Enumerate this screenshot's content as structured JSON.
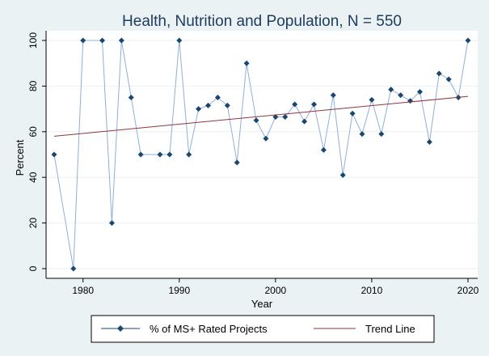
{
  "chart_data": {
    "type": "line",
    "title": "Health, Nutrition and Population, N = 550",
    "xlabel": "Year",
    "ylabel": "Percent",
    "xlim": [
      1977,
      2020
    ],
    "ylim": [
      0,
      100
    ],
    "xticks": [
      1980,
      1990,
      2000,
      2010,
      2020
    ],
    "yticks": [
      0,
      20,
      40,
      60,
      80,
      100
    ],
    "grid": "horizontal",
    "legend_position": "bottom",
    "series": [
      {
        "name": "% of MS+ Rated Projects",
        "color": "#1a476f",
        "marker": "diamond",
        "x": [
          1977,
          1979,
          1980,
          1982,
          1983,
          1984,
          1985,
          1986,
          1988,
          1989,
          1990,
          1991,
          1992,
          1993,
          1994,
          1995,
          1996,
          1997,
          1998,
          1999,
          2000,
          2001,
          2002,
          2003,
          2004,
          2005,
          2006,
          2007,
          2008,
          2009,
          2010,
          2011,
          2012,
          2013,
          2014,
          2015,
          2016,
          2017,
          2018,
          2019,
          2020
        ],
        "y": [
          50,
          0,
          100,
          100,
          20,
          100,
          75,
          50,
          50,
          50,
          100,
          50,
          70,
          71.5,
          75,
          71.5,
          46.5,
          90,
          65,
          57,
          66.5,
          66.5,
          72,
          64.5,
          72,
          52,
          76,
          41,
          68,
          59,
          74,
          59,
          78.5,
          76,
          73.5,
          77.5,
          55.5,
          85.5,
          83,
          75,
          100
        ]
      },
      {
        "name": "Trend Line",
        "color": "#90353b",
        "marker": "none",
        "x": [
          1977,
          2020
        ],
        "y": [
          58,
          75.5
        ]
      }
    ]
  }
}
